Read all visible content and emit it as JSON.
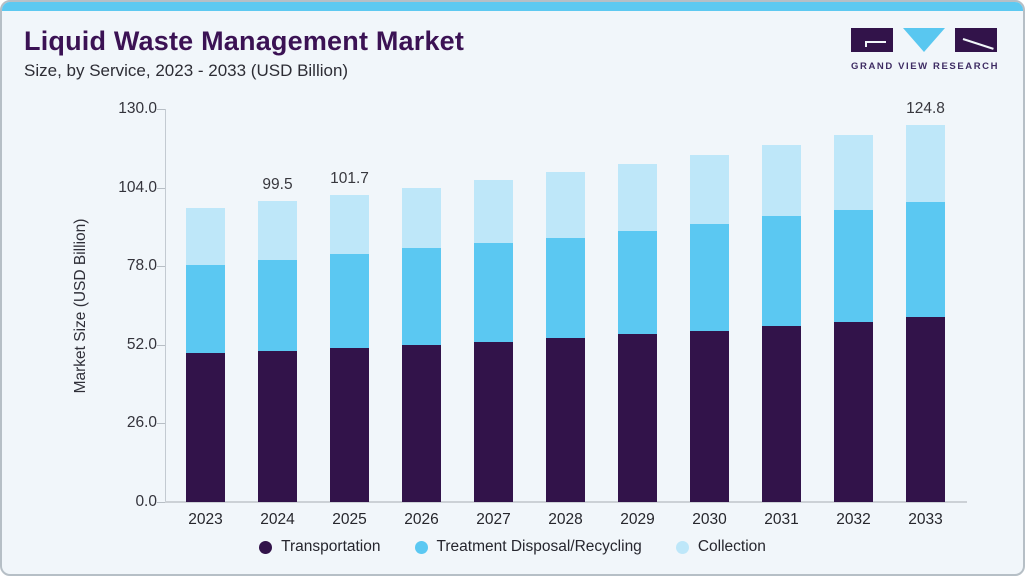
{
  "header": {
    "title": "Liquid Waste Management Market",
    "subtitle": "Size, by Service, 2023 - 2033 (USD Billion)"
  },
  "logo": {
    "text": "GRAND VIEW RESEARCH",
    "block_color": "#32134a",
    "triangle_color": "#59c7f0",
    "text_color": "#3e2c63"
  },
  "chart_data": {
    "type": "bar",
    "stacked": true,
    "title": "Liquid Waste Management Market Size, by Service, 2023 - 2033 (USD Billion)",
    "categories": [
      "2023",
      "2024",
      "2025",
      "2026",
      "2027",
      "2028",
      "2029",
      "2030",
      "2031",
      "2032",
      "2033"
    ],
    "series": [
      {
        "name": "Transportation",
        "color": "#32134a",
        "values": [
          49.2,
          49.8,
          50.8,
          52.0,
          52.9,
          54.1,
          55.5,
          56.7,
          58.2,
          59.6,
          61.3
        ]
      },
      {
        "name": "Treatment Disposal/Recycling",
        "color": "#5bc8f2",
        "values": [
          29.3,
          30.4,
          31.1,
          31.9,
          32.7,
          33.3,
          34.2,
          35.4,
          36.4,
          37.0,
          38.0
        ]
      },
      {
        "name": "Collection",
        "color": "#bee7f9",
        "values": [
          18.9,
          19.3,
          19.8,
          20.1,
          21.0,
          21.7,
          22.1,
          22.7,
          23.5,
          24.8,
          25.5
        ]
      }
    ],
    "totals": [
      97.4,
      99.5,
      101.7,
      104.0,
      106.6,
      109.1,
      111.8,
      114.8,
      118.1,
      121.4,
      124.8
    ],
    "totals_labels": {
      "2024": "99.5",
      "2025": "101.7",
      "2033": "124.8"
    },
    "ylabel": "Market Size (USD Billion)",
    "xlabel": "",
    "yticks": [
      0,
      26,
      52,
      78,
      104,
      130
    ],
    "ytick_labels": [
      "0.0",
      "26.0",
      "52.0",
      "78.0",
      "104.0",
      "130.0"
    ],
    "ylim": [
      0,
      130
    ],
    "grid": false,
    "legend_position": "bottom"
  },
  "colors": {
    "card_background": "#f1f6fa",
    "card_border": "#b6bfc6",
    "top_strip": "#5dc9f1",
    "title_text": "#3b1254",
    "axis_line": "#c3cad1"
  }
}
